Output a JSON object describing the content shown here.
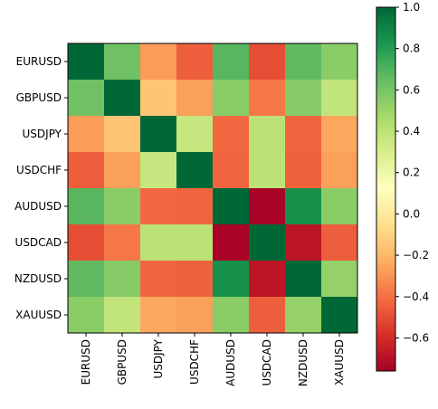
{
  "chart_data": {
    "type": "heatmap",
    "rows": [
      "EURUSD",
      "GBPUSD",
      "USDJPY",
      "USDCHF",
      "AUDUSD",
      "USDCAD",
      "NZDUSD",
      "XAUUSD"
    ],
    "columns": [
      "EURUSD",
      "GBPUSD",
      "USDJPY",
      "USDCHF",
      "AUDUSD",
      "USDCAD",
      "NZDUSD",
      "XAUUSD"
    ],
    "values": [
      [
        1.0,
        0.62,
        -0.28,
        -0.45,
        0.68,
        -0.5,
        0.66,
        0.55
      ],
      [
        0.62,
        1.0,
        -0.15,
        -0.27,
        0.55,
        -0.38,
        0.56,
        0.38
      ],
      [
        -0.28,
        -0.15,
        1.0,
        0.36,
        -0.42,
        0.4,
        -0.43,
        -0.25
      ],
      [
        -0.45,
        -0.27,
        0.36,
        1.0,
        -0.43,
        0.4,
        -0.44,
        -0.27
      ],
      [
        0.68,
        0.55,
        -0.42,
        -0.43,
        1.0,
        -0.75,
        0.85,
        0.55
      ],
      [
        -0.5,
        -0.38,
        0.4,
        0.4,
        -0.75,
        1.0,
        -0.68,
        -0.45
      ],
      [
        0.66,
        0.56,
        -0.43,
        -0.44,
        0.85,
        -0.68,
        1.0,
        0.52
      ],
      [
        0.55,
        0.38,
        -0.25,
        -0.27,
        0.55,
        -0.45,
        0.52,
        1.0
      ]
    ],
    "colormap": "RdYlGn",
    "vmin": -0.76,
    "vmax": 1.0,
    "colorbar_ticks": [
      "1.0",
      "0.8",
      "0.6",
      "0.4",
      "0.2",
      "0.0",
      "−0.2",
      "−0.4",
      "−0.6"
    ],
    "colorbar_tick_values": [
      1.0,
      0.8,
      0.6,
      0.4,
      0.2,
      0.0,
      -0.2,
      -0.4,
      -0.6
    ],
    "title": "",
    "xlabel": "",
    "ylabel": ""
  }
}
